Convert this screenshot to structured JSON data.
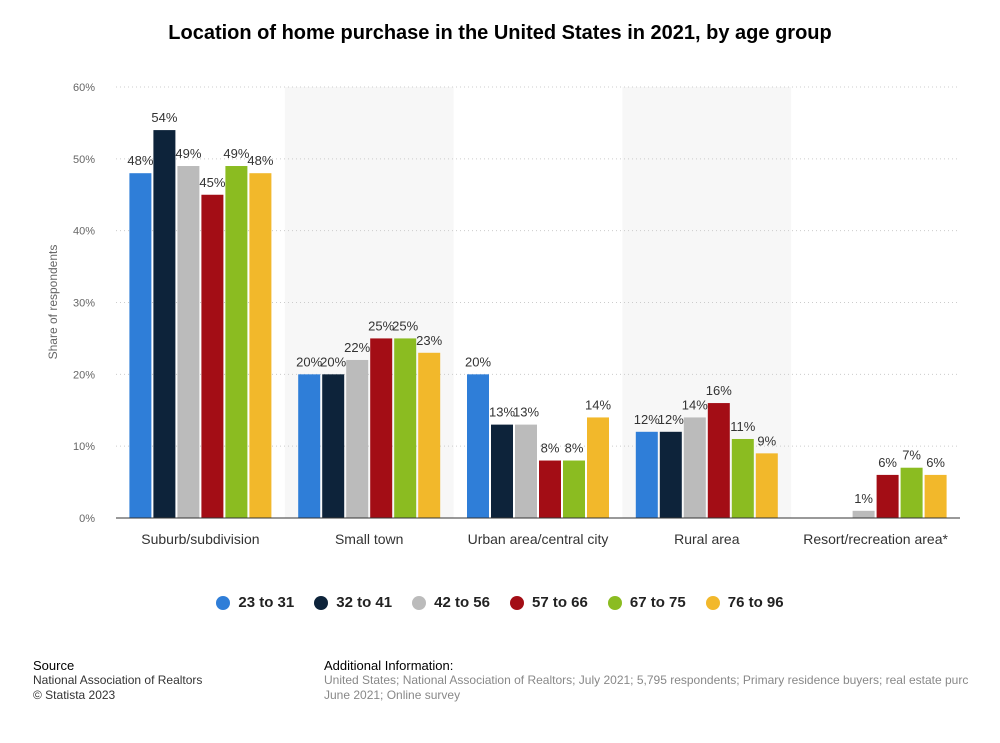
{
  "title": "Location of home purchase in the United States in 2021, by age group",
  "source": {
    "heading": "Source",
    "line1": "National Association of Realtors",
    "line2": "© Statista 2023"
  },
  "additional_info": {
    "heading": "Additional Information:",
    "line1": "United States; National Association of Realtors; July 2021; 5,795 respondents; Primary residence buyers; real estate purc",
    "line2": "June 2021; Online survey"
  },
  "chart_data": {
    "type": "bar",
    "title": "Location of home purchase in the United States in 2021, by age group",
    "ylabel": "Share of respondents",
    "xlabel": "",
    "ylim": [
      0,
      60
    ],
    "yticks": [
      "0%",
      "10%",
      "20%",
      "30%",
      "40%",
      "50%",
      "60%"
    ],
    "grid": true,
    "legend": "bottom",
    "categories": [
      "Suburb/subdivision",
      "Small town",
      "Urban area/central city",
      "Rural area",
      "Resort/recreation area*"
    ],
    "series": [
      {
        "name": "23 to 31",
        "color": "#2f7ed8",
        "values": [
          48,
          20,
          20,
          12,
          null
        ],
        "labels": [
          "48%",
          "20%",
          "20%",
          "12%",
          ""
        ]
      },
      {
        "name": "32 to 41",
        "color": "#0d233a",
        "values": [
          54,
          20,
          13,
          12,
          null
        ],
        "labels": [
          "54%",
          "20%",
          "13%",
          "12%",
          ""
        ]
      },
      {
        "name": "42 to 56",
        "color": "#bbbbbb",
        "values": [
          49,
          22,
          13,
          14,
          1
        ],
        "labels": [
          "49%",
          "22%",
          "13%",
          "14%",
          "1%"
        ]
      },
      {
        "name": "57 to 66",
        "color": "#a30d15",
        "values": [
          45,
          25,
          8,
          16,
          6
        ],
        "labels": [
          "45%",
          "25%",
          "8%",
          "16%",
          "6%"
        ]
      },
      {
        "name": "67 to 75",
        "color": "#8bbc21",
        "values": [
          49,
          25,
          8,
          11,
          7
        ],
        "labels": [
          "49%",
          "25%",
          "8%",
          "11%",
          "7%"
        ]
      },
      {
        "name": "76 to 96",
        "color": "#f2b82b",
        "values": [
          48,
          23,
          14,
          9,
          6
        ],
        "labels": [
          "48%",
          "23%",
          "14%",
          "9%",
          "6%"
        ]
      }
    ]
  }
}
